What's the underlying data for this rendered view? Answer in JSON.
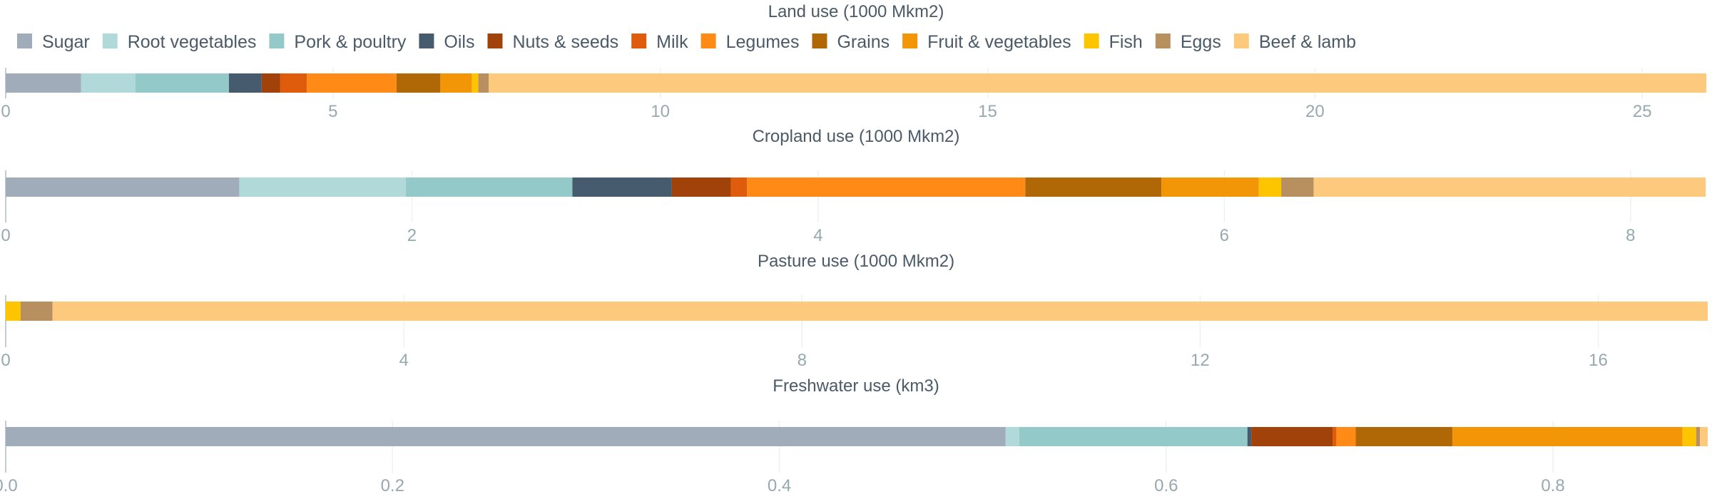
{
  "chart_data": {
    "type": "bar",
    "orientation": "horizontal-stacked",
    "legend": {
      "position": "top",
      "items": [
        {
          "name": "Sugar",
          "color": "#a0acb9"
        },
        {
          "name": "Root vegetables",
          "color": "#b2d9da"
        },
        {
          "name": "Pork & poultry",
          "color": "#94c9c9"
        },
        {
          "name": "Oils",
          "color": "#475b6e"
        },
        {
          "name": "Nuts & seeds",
          "color": "#a0420a"
        },
        {
          "name": "Milk",
          "color": "#e05c0d"
        },
        {
          "name": "Legumes",
          "color": "#ff8a15"
        },
        {
          "name": "Grains",
          "color": "#b06806"
        },
        {
          "name": "Fruit & vegetables",
          "color": "#f29507"
        },
        {
          "name": "Fish",
          "color": "#fdc400"
        },
        {
          "name": "Eggs",
          "color": "#b89060"
        },
        {
          "name": "Beef & lamb",
          "color": "#fdc97d"
        }
      ]
    },
    "grid": true,
    "panels": [
      {
        "title": "Land use (1000 Mkm2)",
        "xlim": [
          0,
          26
        ],
        "ticks": [
          0,
          5,
          10,
          15,
          20,
          25
        ],
        "tick_labels": [
          "0",
          "5",
          "10",
          "15",
          "20",
          "25"
        ],
        "values": [
          1.15,
          0.83,
          1.43,
          0.5,
          0.28,
          0.41,
          1.37,
          0.67,
          0.48,
          0.1,
          0.16,
          18.6
        ]
      },
      {
        "title": "Cropland use (1000 Mkm2)",
        "xlim": [
          0,
          8.38
        ],
        "ticks": [
          0,
          2,
          4,
          6,
          8
        ],
        "tick_labels": [
          "0",
          "2",
          "4",
          "6",
          "8"
        ],
        "values": [
          1.15,
          0.82,
          0.82,
          0.49,
          0.29,
          0.08,
          1.37,
          0.67,
          0.48,
          0.11,
          0.16,
          1.93
        ]
      },
      {
        "title": "Pasture use (1000 Mkm2)",
        "xlim": [
          0,
          17.1
        ],
        "ticks": [
          0,
          4,
          8,
          12,
          16
        ],
        "tick_labels": [
          "0",
          "4",
          "8",
          "12",
          "16"
        ],
        "values": [
          0,
          0,
          0,
          0,
          0,
          0,
          0,
          0,
          0,
          0.15,
          0.32,
          16.63
        ]
      },
      {
        "title": "Freshwater use (km3)",
        "xlim": [
          0,
          0.88
        ],
        "ticks": [
          0,
          0.2,
          0.4,
          0.6,
          0.8
        ],
        "tick_labels": [
          "0.0",
          "0.2",
          "0.4",
          "0.6",
          "0.8"
        ],
        "values": [
          0.517,
          0.007,
          0.118,
          0.002,
          0.042,
          0.002,
          0.01,
          0.05,
          0.119,
          0.007,
          0.002,
          0.004
        ]
      }
    ]
  }
}
